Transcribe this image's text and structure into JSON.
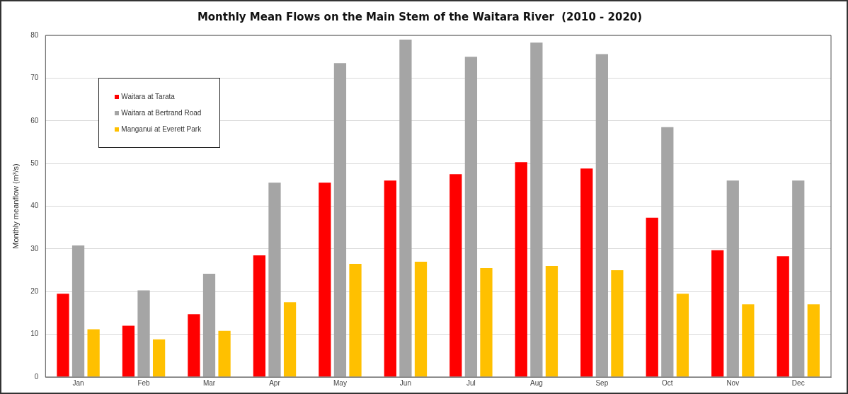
{
  "chart_data": {
    "type": "bar",
    "title": "Monthly Mean Flows on the Main Stem of the Waitara River  (2010 - 2020)",
    "ylabel": "Monthly meanflow (m³/s)",
    "categories": [
      "Jan",
      "Feb",
      "Mar",
      "Apr",
      "May",
      "Jun",
      "Jul",
      "Aug",
      "Sep",
      "Oct",
      "Nov",
      "Dec"
    ],
    "series": [
      {
        "name": "Waitara at Tarata",
        "color": "#ff0000",
        "values": [
          19.5,
          12,
          14.7,
          28.5,
          45.5,
          46,
          47.5,
          50.3,
          48.8,
          37.3,
          29.7,
          28.3
        ]
      },
      {
        "name": "Waitara at Bertrand Road",
        "color": "#a5a5a5",
        "values": [
          30.8,
          20.3,
          24.2,
          45.5,
          73.5,
          79,
          75,
          78.3,
          75.6,
          58.5,
          46,
          46
        ]
      },
      {
        "name": "Manganui at Everett Park",
        "color": "#ffc000",
        "values": [
          11.2,
          8.8,
          10.8,
          17.5,
          26.5,
          27,
          25.5,
          26,
          25,
          19.5,
          17,
          17
        ]
      }
    ],
    "ylim": [
      0,
      80
    ],
    "yticks": [
      0,
      10,
      20,
      30,
      40,
      50,
      60,
      70,
      80
    ],
    "grid": "y",
    "legend": "top left"
  }
}
